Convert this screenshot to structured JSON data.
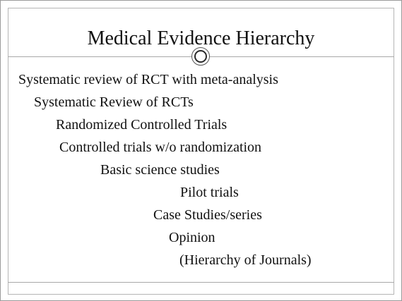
{
  "slide": {
    "title": "Medical Evidence Hierarchy",
    "items": [
      "Systematic review of RCT with meta-analysis",
      "Systematic Review of  RCTs",
      "Randomized Controlled Trials",
      "Controlled trials w/o randomization",
      "Basic science studies",
      "Pilot trials",
      "Case Studies/series",
      "Opinion",
      "(Hierarchy of Journals)"
    ]
  }
}
